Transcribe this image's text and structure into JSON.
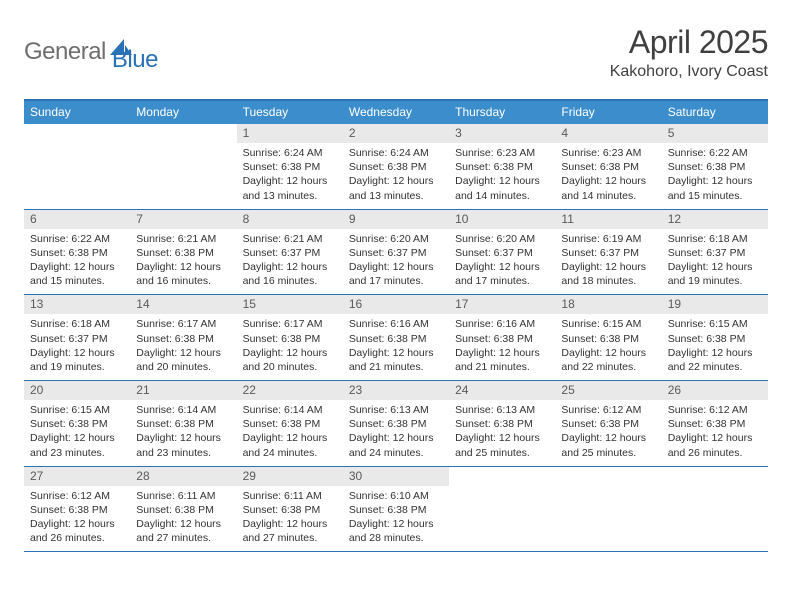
{
  "brand": {
    "part1": "General",
    "part2": "Blue"
  },
  "title": "April 2025",
  "location": "Kakohoro, Ivory Coast",
  "colors": {
    "header_bar": "#3c8dcc",
    "border": "#2a72b5",
    "daynum_bg": "#e9e9e9",
    "text": "#333333",
    "logo_gray": "#6e6e6e",
    "logo_blue": "#2a72b5"
  },
  "weekdays": [
    "Sunday",
    "Monday",
    "Tuesday",
    "Wednesday",
    "Thursday",
    "Friday",
    "Saturday"
  ],
  "weeks": [
    [
      null,
      null,
      {
        "n": "1",
        "sr": "Sunrise: 6:24 AM",
        "ss": "Sunset: 6:38 PM",
        "dl": "Daylight: 12 hours and 13 minutes."
      },
      {
        "n": "2",
        "sr": "Sunrise: 6:24 AM",
        "ss": "Sunset: 6:38 PM",
        "dl": "Daylight: 12 hours and 13 minutes."
      },
      {
        "n": "3",
        "sr": "Sunrise: 6:23 AM",
        "ss": "Sunset: 6:38 PM",
        "dl": "Daylight: 12 hours and 14 minutes."
      },
      {
        "n": "4",
        "sr": "Sunrise: 6:23 AM",
        "ss": "Sunset: 6:38 PM",
        "dl": "Daylight: 12 hours and 14 minutes."
      },
      {
        "n": "5",
        "sr": "Sunrise: 6:22 AM",
        "ss": "Sunset: 6:38 PM",
        "dl": "Daylight: 12 hours and 15 minutes."
      }
    ],
    [
      {
        "n": "6",
        "sr": "Sunrise: 6:22 AM",
        "ss": "Sunset: 6:38 PM",
        "dl": "Daylight: 12 hours and 15 minutes."
      },
      {
        "n": "7",
        "sr": "Sunrise: 6:21 AM",
        "ss": "Sunset: 6:38 PM",
        "dl": "Daylight: 12 hours and 16 minutes."
      },
      {
        "n": "8",
        "sr": "Sunrise: 6:21 AM",
        "ss": "Sunset: 6:37 PM",
        "dl": "Daylight: 12 hours and 16 minutes."
      },
      {
        "n": "9",
        "sr": "Sunrise: 6:20 AM",
        "ss": "Sunset: 6:37 PM",
        "dl": "Daylight: 12 hours and 17 minutes."
      },
      {
        "n": "10",
        "sr": "Sunrise: 6:20 AM",
        "ss": "Sunset: 6:37 PM",
        "dl": "Daylight: 12 hours and 17 minutes."
      },
      {
        "n": "11",
        "sr": "Sunrise: 6:19 AM",
        "ss": "Sunset: 6:37 PM",
        "dl": "Daylight: 12 hours and 18 minutes."
      },
      {
        "n": "12",
        "sr": "Sunrise: 6:18 AM",
        "ss": "Sunset: 6:37 PM",
        "dl": "Daylight: 12 hours and 19 minutes."
      }
    ],
    [
      {
        "n": "13",
        "sr": "Sunrise: 6:18 AM",
        "ss": "Sunset: 6:37 PM",
        "dl": "Daylight: 12 hours and 19 minutes."
      },
      {
        "n": "14",
        "sr": "Sunrise: 6:17 AM",
        "ss": "Sunset: 6:38 PM",
        "dl": "Daylight: 12 hours and 20 minutes."
      },
      {
        "n": "15",
        "sr": "Sunrise: 6:17 AM",
        "ss": "Sunset: 6:38 PM",
        "dl": "Daylight: 12 hours and 20 minutes."
      },
      {
        "n": "16",
        "sr": "Sunrise: 6:16 AM",
        "ss": "Sunset: 6:38 PM",
        "dl": "Daylight: 12 hours and 21 minutes."
      },
      {
        "n": "17",
        "sr": "Sunrise: 6:16 AM",
        "ss": "Sunset: 6:38 PM",
        "dl": "Daylight: 12 hours and 21 minutes."
      },
      {
        "n": "18",
        "sr": "Sunrise: 6:15 AM",
        "ss": "Sunset: 6:38 PM",
        "dl": "Daylight: 12 hours and 22 minutes."
      },
      {
        "n": "19",
        "sr": "Sunrise: 6:15 AM",
        "ss": "Sunset: 6:38 PM",
        "dl": "Daylight: 12 hours and 22 minutes."
      }
    ],
    [
      {
        "n": "20",
        "sr": "Sunrise: 6:15 AM",
        "ss": "Sunset: 6:38 PM",
        "dl": "Daylight: 12 hours and 23 minutes."
      },
      {
        "n": "21",
        "sr": "Sunrise: 6:14 AM",
        "ss": "Sunset: 6:38 PM",
        "dl": "Daylight: 12 hours and 23 minutes."
      },
      {
        "n": "22",
        "sr": "Sunrise: 6:14 AM",
        "ss": "Sunset: 6:38 PM",
        "dl": "Daylight: 12 hours and 24 minutes."
      },
      {
        "n": "23",
        "sr": "Sunrise: 6:13 AM",
        "ss": "Sunset: 6:38 PM",
        "dl": "Daylight: 12 hours and 24 minutes."
      },
      {
        "n": "24",
        "sr": "Sunrise: 6:13 AM",
        "ss": "Sunset: 6:38 PM",
        "dl": "Daylight: 12 hours and 25 minutes."
      },
      {
        "n": "25",
        "sr": "Sunrise: 6:12 AM",
        "ss": "Sunset: 6:38 PM",
        "dl": "Daylight: 12 hours and 25 minutes."
      },
      {
        "n": "26",
        "sr": "Sunrise: 6:12 AM",
        "ss": "Sunset: 6:38 PM",
        "dl": "Daylight: 12 hours and 26 minutes."
      }
    ],
    [
      {
        "n": "27",
        "sr": "Sunrise: 6:12 AM",
        "ss": "Sunset: 6:38 PM",
        "dl": "Daylight: 12 hours and 26 minutes."
      },
      {
        "n": "28",
        "sr": "Sunrise: 6:11 AM",
        "ss": "Sunset: 6:38 PM",
        "dl": "Daylight: 12 hours and 27 minutes."
      },
      {
        "n": "29",
        "sr": "Sunrise: 6:11 AM",
        "ss": "Sunset: 6:38 PM",
        "dl": "Daylight: 12 hours and 27 minutes."
      },
      {
        "n": "30",
        "sr": "Sunrise: 6:10 AM",
        "ss": "Sunset: 6:38 PM",
        "dl": "Daylight: 12 hours and 28 minutes."
      },
      null,
      null,
      null
    ]
  ]
}
